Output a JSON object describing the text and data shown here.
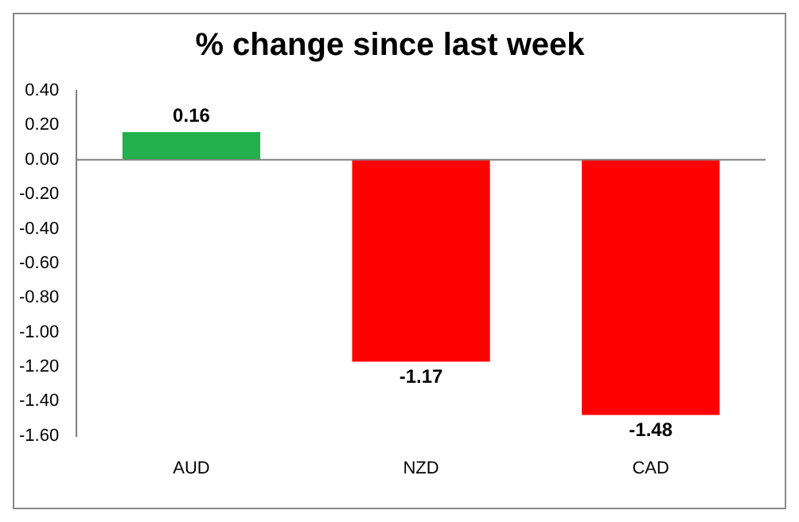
{
  "chart_data": {
    "type": "bar",
    "title": "% change since last week",
    "categories": [
      "AUD",
      "NZD",
      "CAD"
    ],
    "values": [
      0.16,
      -1.17,
      -1.48
    ],
    "colors": [
      "#22b14c",
      "#ff0000",
      "#ff0000"
    ],
    "ylim": [
      -1.6,
      0.4
    ],
    "yticks": [
      {
        "value": -1.6,
        "label": "-1.60"
      },
      {
        "value": -1.4,
        "label": "-1.40"
      },
      {
        "value": -1.2,
        "label": "-1.20"
      },
      {
        "value": -1,
        "label": "-1.00"
      },
      {
        "value": -0.8,
        "label": "-0.80"
      },
      {
        "value": -0.6,
        "label": "-0.60"
      },
      {
        "value": -0.4,
        "label": "-0.40"
      },
      {
        "value": -0.2,
        "label": "-0.20"
      },
      {
        "value": 0,
        "label": "0.00"
      },
      {
        "value": 0.2,
        "label": "0.20"
      },
      {
        "value": 0.4,
        "label": "0.40"
      }
    ],
    "data_labels": true,
    "legend": false
  }
}
